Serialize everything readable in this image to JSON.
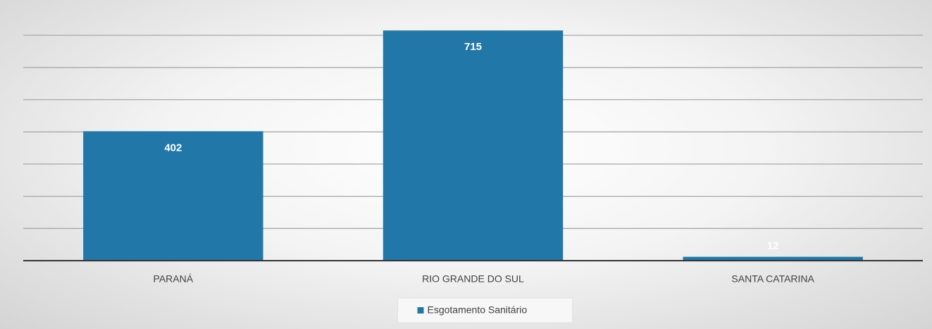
{
  "chart_data": {
    "type": "bar",
    "categories": [
      "PARANÁ",
      "RIO GRANDE DO SUL",
      "SANTA CATARINA"
    ],
    "series": [
      {
        "name": "Esgotamento Sanitário",
        "color": "#2277a9",
        "values": [
          402,
          715,
          12
        ]
      }
    ],
    "ylim": [
      0,
      800
    ],
    "yticks": [
      0,
      100,
      200,
      300,
      400,
      500,
      600,
      700
    ],
    "grid": true,
    "legend": "bottom"
  }
}
